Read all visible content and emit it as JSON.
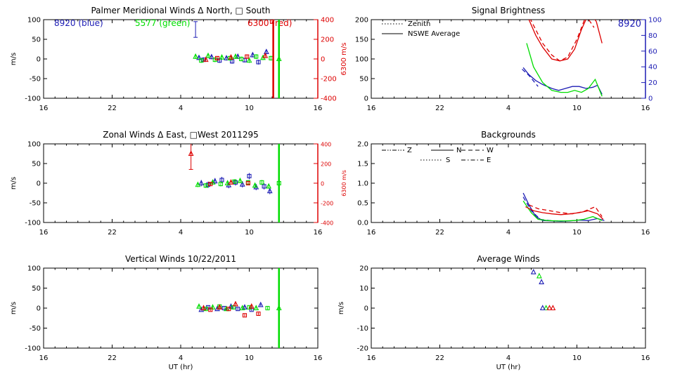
{
  "chart_data": [
    {
      "id": "meridional",
      "type": "scatter",
      "title": "Palmer Meridional Winds Δ North, □ South",
      "ylabel": "m/s",
      "ylim": [
        -100,
        100
      ],
      "yticks": [
        100,
        50,
        0,
        -50,
        -100
      ],
      "xticks": [
        "16",
        "22",
        "4",
        "10",
        "16"
      ],
      "right_axis": {
        "label": "6300 m/s",
        "color": "#dd0000",
        "ticks": [
          400,
          200,
          0,
          -200,
          -400
        ],
        "range": [
          -400,
          400
        ]
      },
      "annotations": [
        {
          "text": "8920 (blue)",
          "color": "#1c1cb4"
        },
        {
          "text": "5577 (green)",
          "color": "#00dd00"
        },
        {
          "text": "6300 (red)",
          "color": "#dd0000"
        }
      ],
      "series": [
        {
          "color": "#1c1cb4",
          "points": [
            [
              29.6,
              3
            ],
            [
              30.0,
              -2
            ],
            [
              30.7,
              5
            ],
            [
              31.4,
              -4
            ],
            [
              32.0,
              2
            ],
            [
              32.5,
              -6
            ],
            [
              33.0,
              6
            ],
            [
              33.6,
              -3
            ],
            [
              34.3,
              10
            ],
            [
              34.8,
              -8
            ],
            [
              35.5,
              18
            ]
          ],
          "err": 6,
          "outlier": {
            "x": 29.3,
            "y": 75,
            "err": 20
          }
        },
        {
          "color": "#00dd00",
          "points": [
            [
              29.3,
              6
            ],
            [
              29.8,
              -4
            ],
            [
              30.4,
              8
            ],
            [
              31.0,
              -2
            ],
            [
              31.6,
              4
            ],
            [
              32.3,
              2
            ],
            [
              32.8,
              6
            ],
            [
              33.3,
              0
            ],
            [
              34.0,
              -4
            ],
            [
              34.6,
              6
            ],
            [
              35.2,
              3
            ],
            [
              35.9,
              2
            ],
            [
              36.6,
              0
            ]
          ],
          "err": 6,
          "line": {
            "x": 36.6,
            "from": -100,
            "to": 100
          }
        },
        {
          "color": "#dd0000",
          "points": [
            [
              30.2,
              -2
            ],
            [
              31.2,
              2
            ],
            [
              32.4,
              4
            ],
            [
              33.8,
              6
            ],
            [
              35.4,
              8
            ],
            [
              36.0,
              95
            ]
          ],
          "err": 5,
          "line": {
            "x": 36.1,
            "from": -100,
            "to": 95
          }
        }
      ]
    },
    {
      "id": "zonal",
      "type": "scatter",
      "title": "Zonal Winds Δ East, □West 2011295",
      "ylabel": "m/s",
      "ylim": [
        -100,
        100
      ],
      "yticks": [
        100,
        50,
        0,
        -50,
        -100
      ],
      "xticks": [
        "16",
        "22",
        "4",
        "10",
        "16"
      ],
      "right_axis": {
        "label": "6300 m/s",
        "color": "#dd0000",
        "ticks": [
          400,
          200,
          0,
          -200,
          -400
        ],
        "range": [
          -400,
          400
        ]
      },
      "series": [
        {
          "color": "#1c1cb4",
          "points": [
            [
              29.8,
              0
            ],
            [
              30.4,
              -4
            ],
            [
              31.0,
              5
            ],
            [
              31.6,
              8
            ],
            [
              32.2,
              -5
            ],
            [
              32.8,
              2
            ],
            [
              33.4,
              -3
            ],
            [
              34.0,
              18
            ],
            [
              34.6,
              -10
            ],
            [
              35.3,
              -8
            ],
            [
              35.8,
              -20
            ]
          ],
          "err": 8
        },
        {
          "color": "#00dd00",
          "points": [
            [
              29.5,
              -4
            ],
            [
              30.2,
              -6
            ],
            [
              30.8,
              2
            ],
            [
              31.5,
              -2
            ],
            [
              32.1,
              0
            ],
            [
              32.7,
              4
            ],
            [
              33.2,
              6
            ],
            [
              33.9,
              2
            ],
            [
              34.5,
              -6
            ],
            [
              35.1,
              2
            ],
            [
              35.7,
              -8
            ],
            [
              36.6,
              0
            ]
          ],
          "err": 6,
          "line": {
            "x": 36.6,
            "from": -100,
            "to": 100
          }
        },
        {
          "color": "#dd0000",
          "points": [
            [
              28.9,
              75
            ],
            [
              30.6,
              -2
            ],
            [
              32.4,
              2
            ],
            [
              33.9,
              0
            ]
          ],
          "err": 4,
          "outlier": {
            "x": 28.9,
            "y": 75,
            "err": 40
          }
        }
      ]
    },
    {
      "id": "vertical",
      "type": "scatter",
      "title": "Vertical Winds 10/22/2011",
      "ylabel": "m/s",
      "xlabel": "UT (hr)",
      "ylim": [
        -100,
        100
      ],
      "yticks": [
        100,
        50,
        0,
        -50,
        -100
      ],
      "xticks": [
        "16",
        "22",
        "4",
        "10",
        "16"
      ],
      "series": [
        {
          "color": "#1c1cb4",
          "points": [
            [
              29.8,
              -4
            ],
            [
              30.4,
              2
            ],
            [
              31.2,
              -2
            ],
            [
              31.8,
              0
            ],
            [
              32.4,
              4
            ],
            [
              33.0,
              -2
            ],
            [
              33.6,
              2
            ],
            [
              34.2,
              -4
            ],
            [
              35.0,
              8
            ]
          ],
          "err": 3
        },
        {
          "color": "#00dd00",
          "points": [
            [
              29.6,
              4
            ],
            [
              30.2,
              -2
            ],
            [
              30.8,
              2
            ],
            [
              31.4,
              4
            ],
            [
              32.0,
              -2
            ],
            [
              32.6,
              2
            ],
            [
              33.4,
              0
            ],
            [
              34.0,
              2
            ],
            [
              34.6,
              0
            ],
            [
              35.6,
              0
            ],
            [
              36.6,
              0
            ]
          ],
          "err": 3,
          "line": {
            "x": 36.6,
            "from": -100,
            "to": 100
          }
        },
        {
          "color": "#dd0000",
          "points": [
            [
              30.0,
              0
            ],
            [
              30.6,
              -4
            ],
            [
              31.4,
              2
            ],
            [
              32.2,
              -2
            ],
            [
              32.8,
              10
            ],
            [
              33.6,
              -18
            ],
            [
              34.2,
              4
            ],
            [
              34.8,
              -14
            ]
          ],
          "err": 3
        }
      ]
    },
    {
      "id": "brightness",
      "type": "line",
      "title": "Signal Brightness",
      "ylim": [
        0,
        200
      ],
      "yticks": [
        200,
        150,
        100,
        50,
        0
      ],
      "xticks": [
        "16",
        "22",
        "4",
        "10",
        "16"
      ],
      "right_axis": {
        "label": "8920",
        "color": "#1c1cb4",
        "ticks": [
          100,
          80,
          60,
          40,
          20,
          0
        ],
        "range": [
          0,
          100
        ]
      },
      "legend": [
        {
          "label": "Zenith",
          "style": "dotted"
        },
        {
          "label": "NSWE Average",
          "style": "solid"
        }
      ],
      "series": [
        {
          "color": "#dd0000",
          "style": "solid",
          "x": [
            29.3,
            29.8,
            30.4,
            31.0,
            31.8,
            32.5,
            33.2,
            33.8,
            34.4,
            35.1,
            35.7,
            36.2
          ],
          "y": [
            230,
            200,
            160,
            130,
            100,
            95,
            100,
            125,
            175,
            220,
            195,
            140
          ]
        },
        {
          "color": "#dd0000",
          "style": "dashed",
          "x": [
            29.6,
            30.3,
            31.0,
            31.8,
            32.5,
            33.2,
            34.0,
            34.8,
            35.5
          ],
          "y": [
            220,
            180,
            140,
            110,
            95,
            105,
            150,
            210,
            180
          ]
        },
        {
          "color": "#1c1cb4",
          "style": "solid",
          "x": [
            29.3,
            29.8,
            30.4,
            31.0,
            31.8,
            32.4,
            33.0,
            33.6,
            34.2,
            34.8,
            35.4,
            35.8,
            36.2
          ],
          "y": [
            78,
            60,
            45,
            35,
            25,
            20,
            25,
            30,
            30,
            25,
            28,
            33,
            10
          ]
        },
        {
          "color": "#1c1cb4",
          "style": "dashed",
          "x": [
            29.2,
            29.8,
            30.6
          ],
          "y": [
            74,
            58,
            30
          ]
        },
        {
          "color": "#00dd00",
          "style": "solid",
          "x": [
            29.6,
            30.2,
            31.0,
            31.8,
            32.6,
            33.2,
            33.8,
            34.4,
            35.0,
            35.6,
            36.2
          ],
          "y": [
            140,
            80,
            40,
            20,
            15,
            15,
            20,
            15,
            25,
            48,
            5
          ]
        }
      ]
    },
    {
      "id": "backgrounds",
      "type": "line",
      "title": "Backgrounds",
      "ylim": [
        0,
        2.0
      ],
      "yticks": [
        2.0,
        1.5,
        1.0,
        0.5,
        0.0
      ],
      "yticklabels": [
        "2.0",
        "1.5",
        "1.0",
        "0.5",
        "0.0"
      ],
      "xticks": [
        "16",
        "22",
        "4",
        "10",
        "16"
      ],
      "legend": [
        {
          "label": "Z",
          "style": "dash-dot-dot"
        },
        {
          "label": "N",
          "style": "solid"
        },
        {
          "label": "W",
          "style": "dashed"
        },
        {
          "label": "S",
          "style": "dotted"
        },
        {
          "label": "E",
          "style": "dash-dot"
        }
      ],
      "series": [
        {
          "color": "#1c1cb4",
          "style": "solid",
          "x": [
            29.3,
            29.8,
            30.4,
            31.0,
            31.8,
            32.6,
            33.4,
            34.2,
            35.0,
            35.8,
            36.4
          ],
          "y": [
            0.75,
            0.45,
            0.15,
            0.05,
            0.04,
            0.03,
            0.04,
            0.06,
            0.05,
            0.1,
            0.05
          ]
        },
        {
          "color": "#1c1cb4",
          "style": "dashed",
          "x": [
            29.3,
            30.0,
            30.8,
            31.6,
            32.4
          ],
          "y": [
            0.65,
            0.3,
            0.08,
            0.05,
            0.04
          ]
        },
        {
          "color": "#00dd00",
          "style": "solid",
          "x": [
            29.3,
            30.0,
            30.6,
            31.4,
            32.2,
            33.0,
            33.8,
            34.6,
            35.4,
            36.2
          ],
          "y": [
            0.55,
            0.25,
            0.08,
            0.05,
            0.04,
            0.04,
            0.05,
            0.08,
            0.15,
            0.05
          ]
        },
        {
          "color": "#dd0000",
          "style": "solid",
          "x": [
            29.5,
            30.2,
            31.0,
            31.8,
            32.6,
            33.4,
            34.2,
            35.0,
            35.8,
            36.3
          ],
          "y": [
            0.4,
            0.3,
            0.25,
            0.22,
            0.2,
            0.22,
            0.25,
            0.3,
            0.22,
            0.08
          ]
        },
        {
          "color": "#dd0000",
          "style": "dashed",
          "x": [
            29.8,
            30.6,
            31.6,
            32.6,
            33.6,
            34.6,
            35.6,
            36.2
          ],
          "y": [
            0.45,
            0.35,
            0.3,
            0.25,
            0.22,
            0.28,
            0.4,
            0.15
          ]
        }
      ]
    },
    {
      "id": "average",
      "type": "scatter",
      "title": "Average Winds",
      "ylabel": "m/s",
      "xlabel": "UT (hr)",
      "ylim": [
        -20,
        20
      ],
      "yticks": [
        20,
        10,
        0,
        -10,
        -20
      ],
      "xticks": [
        "16",
        "22",
        "4",
        "10",
        "16"
      ],
      "series": [
        {
          "color": "#1c1cb4",
          "marker": "triangle",
          "points": [
            [
              30.2,
              18
            ],
            [
              30.9,
              13
            ]
          ]
        },
        {
          "color": "#00dd00",
          "marker": "triangle",
          "points": [
            [
              30.7,
              16
            ],
            [
              31.3,
              0
            ]
          ]
        },
        {
          "color": "#dd0000",
          "marker": "triangle",
          "points": [
            [
              31.6,
              0
            ],
            [
              31.9,
              0
            ]
          ]
        },
        {
          "color": "#1c1cb4",
          "marker": "triangle",
          "points": [
            [
              31.0,
              0
            ]
          ]
        }
      ]
    }
  ]
}
